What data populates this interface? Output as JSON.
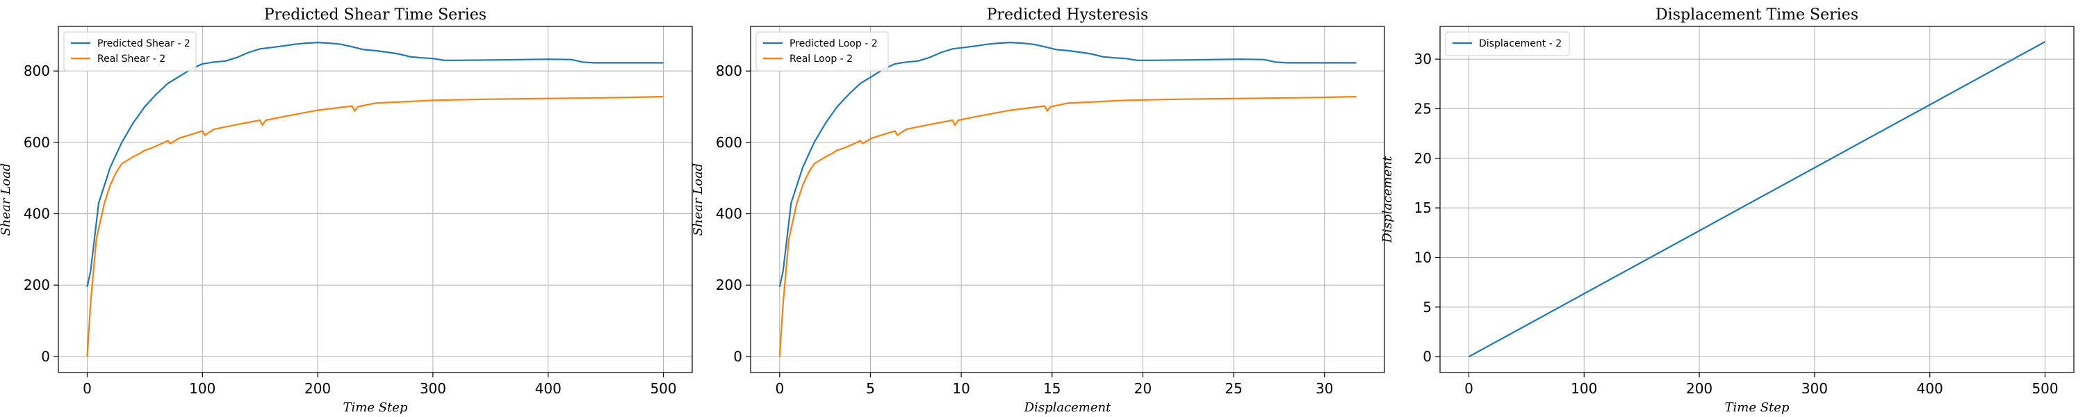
{
  "chart_data": [
    {
      "type": "line",
      "title": "Predicted Shear Time Series",
      "xlabel": "Time Step",
      "ylabel": "Shear Load",
      "xlim": [
        -25,
        525
      ],
      "ylim": [
        -45,
        925
      ],
      "xticks": [
        0,
        100,
        200,
        300,
        400,
        500
      ],
      "yticks": [
        0,
        200,
        400,
        600,
        800
      ],
      "grid": true,
      "legend": "top-left",
      "series": [
        {
          "name": "Predicted Shear - 2",
          "color": "#1f77b4",
          "x": [
            0,
            3,
            10,
            20,
            30,
            40,
            50,
            60,
            70,
            80,
            90,
            100,
            110,
            120,
            130,
            140,
            150,
            160,
            170,
            180,
            190,
            200,
            210,
            220,
            230,
            240,
            250,
            260,
            270,
            280,
            290,
            300,
            310,
            320,
            350,
            400,
            420,
            430,
            440,
            500
          ],
          "y": [
            195,
            240,
            430,
            530,
            600,
            655,
            700,
            735,
            765,
            785,
            805,
            820,
            825,
            828,
            838,
            852,
            862,
            866,
            870,
            875,
            878,
            880,
            878,
            875,
            868,
            860,
            857,
            853,
            848,
            840,
            837,
            835,
            830,
            830,
            831,
            833,
            832,
            825,
            823,
            823
          ]
        },
        {
          "name": "Real Shear - 2",
          "color": "#ff7f0e",
          "x": [
            0,
            3,
            8,
            15,
            20,
            25,
            30,
            35,
            40,
            45,
            50,
            55,
            60,
            65,
            70,
            72,
            80,
            90,
            100,
            102,
            110,
            130,
            150,
            152,
            155,
            170,
            200,
            230,
            232,
            235,
            250,
            300,
            350,
            400,
            450,
            500
          ],
          "y": [
            0,
            150,
            330,
            430,
            480,
            515,
            540,
            550,
            560,
            568,
            578,
            583,
            590,
            597,
            605,
            597,
            612,
            622,
            632,
            620,
            637,
            650,
            662,
            648,
            662,
            672,
            690,
            702,
            688,
            700,
            710,
            718,
            721,
            723,
            725,
            728
          ]
        }
      ]
    },
    {
      "type": "line",
      "title": "Predicted Hysteresis",
      "xlabel": "Displacement",
      "ylabel": "Shear Load",
      "xlim": [
        -1.6,
        33.3
      ],
      "ylim": [
        -45,
        925
      ],
      "xticks": [
        0,
        5,
        10,
        15,
        20,
        25,
        30
      ],
      "yticks": [
        0,
        200,
        400,
        600,
        800
      ],
      "grid": true,
      "legend": "top-left",
      "series": [
        {
          "name": "Predicted Loop - 2",
          "color": "#1f77b4",
          "x": [
            0,
            0.19,
            0.63,
            1.27,
            1.9,
            2.54,
            3.17,
            3.81,
            4.44,
            5.08,
            5.71,
            6.35,
            6.98,
            7.62,
            8.25,
            8.89,
            9.52,
            10.16,
            10.79,
            11.43,
            12.06,
            12.7,
            13.33,
            13.97,
            14.6,
            15.24,
            15.87,
            16.51,
            17.14,
            17.78,
            18.41,
            19.05,
            19.68,
            20.32,
            22.22,
            25.4,
            26.67,
            27.3,
            27.94,
            31.75
          ],
          "y": [
            195,
            240,
            430,
            530,
            600,
            655,
            700,
            735,
            765,
            785,
            805,
            820,
            825,
            828,
            838,
            852,
            862,
            866,
            870,
            875,
            878,
            880,
            878,
            875,
            868,
            860,
            857,
            853,
            848,
            840,
            837,
            835,
            830,
            830,
            831,
            833,
            832,
            825,
            823,
            823
          ]
        },
        {
          "name": "Real Loop - 2",
          "color": "#ff7f0e",
          "x": [
            0,
            0.19,
            0.51,
            0.95,
            1.27,
            1.59,
            1.9,
            2.22,
            2.54,
            2.86,
            3.17,
            3.49,
            3.81,
            4.13,
            4.44,
            4.57,
            5.08,
            5.71,
            6.35,
            6.48,
            6.98,
            8.25,
            9.52,
            9.65,
            9.84,
            10.79,
            12.7,
            14.6,
            14.73,
            14.92,
            15.87,
            19.05,
            22.22,
            25.4,
            28.57,
            31.75
          ],
          "y": [
            0,
            150,
            330,
            430,
            480,
            515,
            540,
            550,
            560,
            568,
            578,
            583,
            590,
            597,
            605,
            597,
            612,
            622,
            632,
            620,
            637,
            650,
            662,
            648,
            662,
            672,
            690,
            702,
            688,
            700,
            710,
            718,
            721,
            723,
            725,
            728
          ]
        }
      ]
    },
    {
      "type": "line",
      "title": "Displacement Time Series",
      "xlabel": "Time Step",
      "ylabel": "Displacement",
      "xlim": [
        -25,
        525
      ],
      "ylim": [
        -1.6,
        33.3
      ],
      "xticks": [
        0,
        100,
        200,
        300,
        400,
        500
      ],
      "yticks": [
        0,
        5,
        10,
        15,
        20,
        25,
        30
      ],
      "grid": true,
      "legend": "top-left",
      "series": [
        {
          "name": "Displacement - 2",
          "color": "#1f77b4",
          "x": [
            0,
            500
          ],
          "y": [
            0,
            31.75
          ]
        }
      ]
    }
  ]
}
